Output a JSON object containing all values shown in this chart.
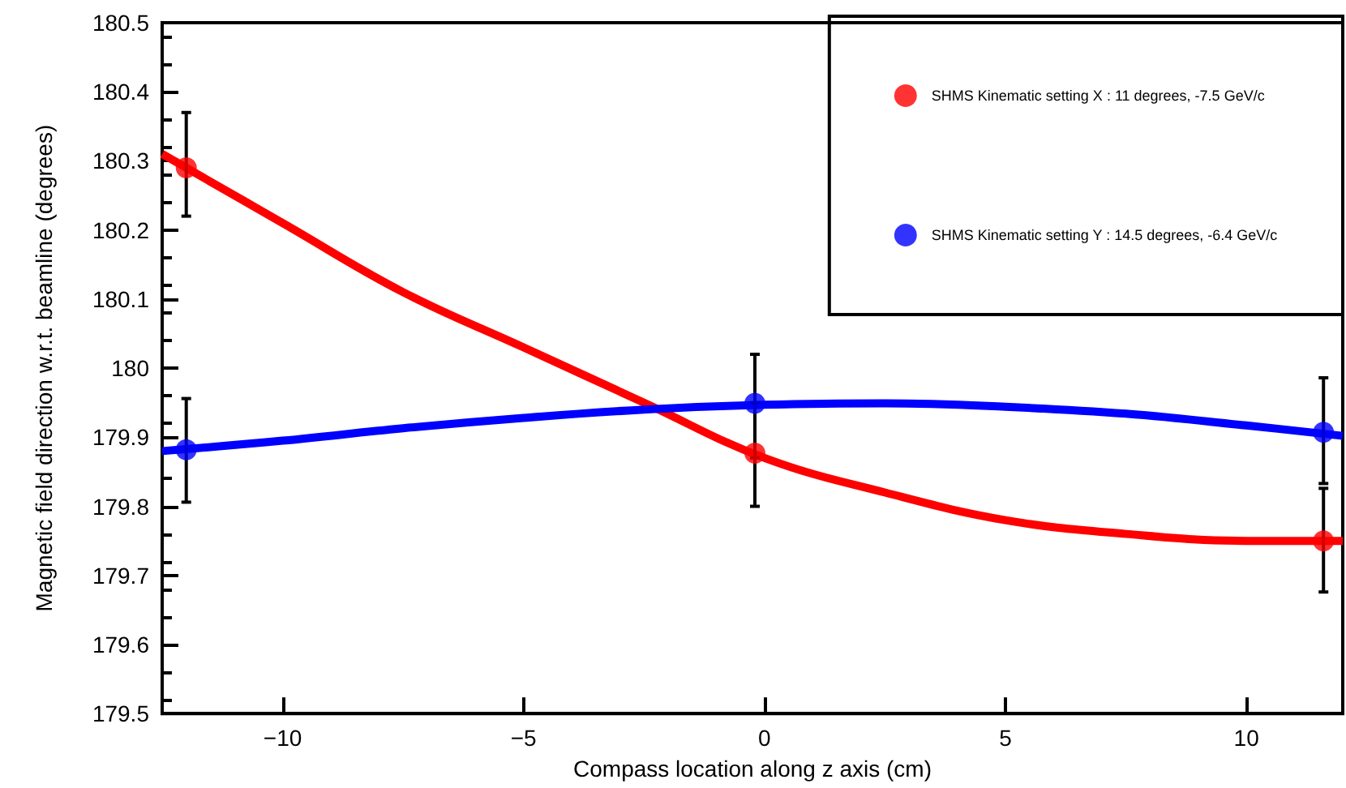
{
  "chart_data": {
    "type": "scatter",
    "xlabel": "Compass location along z axis (cm)",
    "ylabel": "Magnetic field direction w.r.t. beamline (degrees)",
    "xlim": [
      -12.5,
      12
    ],
    "xticks": [
      {
        "value": -10,
        "label": "−10"
      },
      {
        "value": -5,
        "label": "−5"
      },
      0,
      5,
      10
    ],
    "ylim": [
      179.5,
      180.5
    ],
    "yticks": [
      179.5,
      179.6,
      179.7,
      179.8,
      179.9,
      {
        "value": 180,
        "label": "180"
      },
      180.1,
      180.2,
      180.3,
      180.4,
      180.5
    ],
    "grid": false,
    "legend": "top right",
    "marker": "circle",
    "series": [
      {
        "name": "SHMS Kinematic setting X : 11 degrees, -7.5 GeV/c",
        "color": "#ff0000",
        "x": [
          -12,
          -0.2,
          11.6
        ],
        "values": [
          180.29,
          179.877,
          179.75
        ],
        "errors": [
          [
            180.22,
            180.37
          ],
          [
            179.8,
            179.95
          ],
          [
            179.676,
            179.826
          ]
        ]
      },
      {
        "name": "SHMS Kinematic setting Y : 14.5 degrees, -6.4 GeV/c",
        "color": "#0000ff",
        "x": [
          -12,
          -0.2,
          11.6
        ],
        "values": [
          179.882,
          179.949,
          179.907
        ],
        "errors": [
          [
            179.806,
            179.956
          ],
          [
            179.87,
            180.02
          ],
          [
            179.833,
            179.986
          ]
        ]
      },
      {
        "type": "line",
        "marker": "none",
        "color": "#ff0000",
        "x": [
          -12.5,
          -10,
          -7.5,
          -5,
          -2.5,
          0,
          2.5,
          5,
          7.5,
          10,
          12
        ],
        "values": [
          180.31,
          180.21,
          180.11,
          180.03,
          179.95,
          179.87,
          179.82,
          179.78,
          179.76,
          179.75,
          179.75
        ]
      },
      {
        "type": "line",
        "marker": "none",
        "color": "#0000ff",
        "x": [
          -12.5,
          -10,
          -7.5,
          -5,
          -2.5,
          0,
          2.5,
          5,
          7.5,
          10,
          12
        ],
        "values": [
          179.88,
          179.895,
          179.913,
          179.928,
          179.94,
          179.947,
          179.949,
          179.944,
          179.934,
          179.917,
          179.902
        ]
      }
    ]
  }
}
